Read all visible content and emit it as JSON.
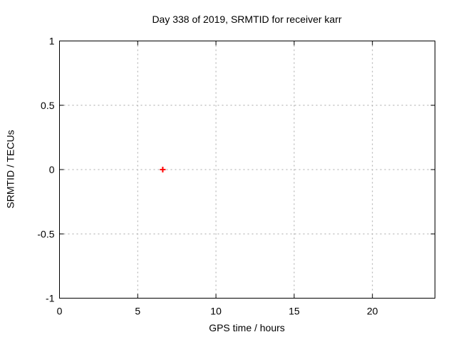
{
  "chart_data": {
    "type": "scatter",
    "title": "Day 338 of 2019, SRMTID for receiver karr",
    "xlabel": "GPS time / hours",
    "ylabel": "SRMTID / TECUs",
    "xlim": [
      0,
      24
    ],
    "ylim": [
      -1,
      1
    ],
    "xticks": [
      0,
      5,
      10,
      15,
      20
    ],
    "yticks": [
      -1,
      -0.5,
      0,
      0.5,
      1
    ],
    "grid": true,
    "legend": "none",
    "series": [
      {
        "name": "SRMTID",
        "marker": "plus",
        "color": "#ff0000",
        "points": [
          {
            "x": 6.6,
            "y": 0.0
          }
        ]
      }
    ],
    "colors": {
      "background": "#ffffff",
      "axis": "#000000",
      "grid": "#a8a8a8",
      "text": "#000000"
    }
  }
}
